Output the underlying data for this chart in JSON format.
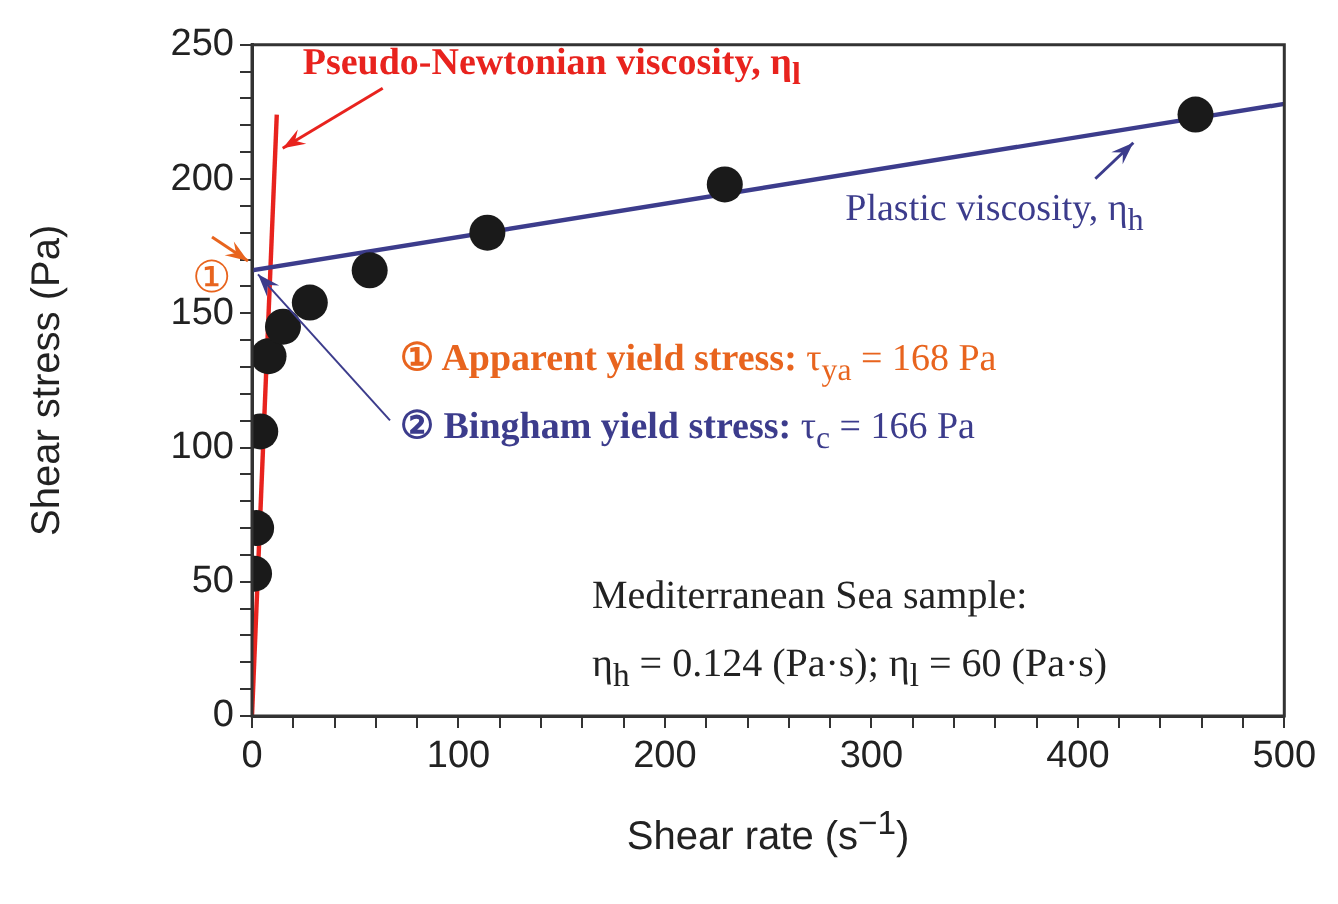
{
  "chart_data": {
    "type": "scatter",
    "xlabel": "Shear rate (s$^{−1}$)",
    "ylabel": "Shear stress (Pa)",
    "xlim": [
      0,
      500
    ],
    "ylim": [
      0,
      250
    ],
    "xticks": [
      0,
      {
        "value": 20,
        "label": null
      },
      {
        "value": 40,
        "label": null
      },
      {
        "value": 60,
        "label": null
      },
      {
        "value": 80,
        "label": null
      },
      100,
      {
        "value": 120,
        "label": null
      },
      {
        "value": 140,
        "label": null
      },
      {
        "value": 160,
        "label": null
      },
      {
        "value": 180,
        "label": null
      },
      200,
      {
        "value": 220,
        "label": null
      },
      {
        "value": 240,
        "label": null
      },
      {
        "value": 260,
        "label": null
      },
      {
        "value": 280,
        "label": null
      },
      300,
      {
        "value": 320,
        "label": null
      },
      {
        "value": 340,
        "label": null
      },
      {
        "value": 360,
        "label": null
      },
      {
        "value": 380,
        "label": null
      },
      400,
      {
        "value": 420,
        "label": null
      },
      {
        "value": 440,
        "label": null
      },
      {
        "value": 460,
        "label": null
      },
      {
        "value": 480,
        "label": null
      },
      500
    ],
    "yticks": [
      0,
      {
        "value": 10,
        "label": null
      },
      {
        "value": 20,
        "label": null
      },
      {
        "value": 30,
        "label": null
      },
      {
        "value": 40,
        "label": null
      },
      50,
      {
        "value": 60,
        "label": null
      },
      {
        "value": 70,
        "label": null
      },
      {
        "value": 80,
        "label": null
      },
      {
        "value": 90,
        "label": null
      },
      100,
      {
        "value": 110,
        "label": null
      },
      {
        "value": 120,
        "label": null
      },
      {
        "value": 130,
        "label": null
      },
      {
        "value": 140,
        "label": null
      },
      150,
      {
        "value": 160,
        "label": null
      },
      {
        "value": 170,
        "label": null
      },
      {
        "value": 180,
        "label": null
      },
      {
        "value": 190,
        "label": null
      },
      200,
      {
        "value": 210,
        "label": null
      },
      {
        "value": 220,
        "label": null
      },
      {
        "value": 230,
        "label": null
      },
      {
        "value": 240,
        "label": null
      },
      250
    ],
    "grid": false,
    "legend": false,
    "marker": "circle",
    "series": [
      {
        "type": "scatter",
        "color": "#1a1a1a",
        "x": [
          1,
          2,
          4,
          8,
          15,
          28,
          57,
          114,
          229,
          457
        ],
        "values": [
          53,
          70,
          106,
          134,
          145,
          154,
          166,
          180,
          198,
          224
        ]
      },
      {
        "type": "line",
        "color": "#3c3c8c",
        "marker": "none",
        "x": [
          0,
          500
        ],
        "values": [
          166,
          228
        ]
      },
      {
        "type": "line",
        "color": "#e8231e",
        "marker": "none",
        "x": [
          0,
          12
        ],
        "values": [
          0,
          224
        ]
      }
    ],
    "annotations": [
      {
        "text": "Pseudo-Newtonian viscosity, η$_{l}$",
        "x": 11,
        "y": 207
      },
      {
        "text": "Plastic viscosity, η$_{h}$",
        "x": 423,
        "y": 218
      },
      {
        "text": "①",
        "x": 0,
        "y": 168
      },
      "① Apparent yield stress: τ$_{ya}$ = 168 Pa",
      {
        "text": "② Bingham yield stress: τ$_{c}$ = 166 Pa",
        "x": 0,
        "y": 166
      },
      "Mediterranean Sea sample:",
      "η$_{h}$ = 0.124 (Pa·s); η$_{l}$ = 60 (Pa·s)"
    ]
  }
}
